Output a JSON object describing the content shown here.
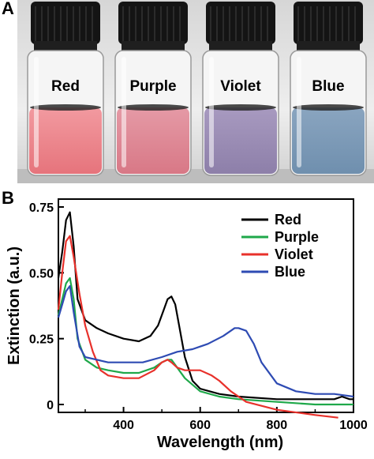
{
  "panels": {
    "a": "A",
    "b": "B"
  },
  "photo": {
    "vials": [
      {
        "label": "Red",
        "liquid": "#e6747c",
        "liquid_top": "#f29aa0"
      },
      {
        "label": "Purple",
        "liquid": "#d87886",
        "liquid_top": "#e59aa6"
      },
      {
        "label": "Violet",
        "liquid": "#8d7fa9",
        "liquid_top": "#a89ac0"
      },
      {
        "label": "Blue",
        "liquid": "#6f8fae",
        "liquid_top": "#8aa5c0"
      }
    ]
  },
  "chart_data": {
    "type": "line",
    "xlabel": "Wavelength (nm)",
    "ylabel": "Extinction (a.u.)",
    "xlim": [
      230,
      1000
    ],
    "ylim": [
      -0.03,
      0.78
    ],
    "xticks": [
      400,
      600,
      800,
      1000
    ],
    "yticks": [
      0,
      0.25,
      0.5,
      0.75
    ],
    "ytick_labels": [
      "0",
      "0.25",
      "0.50",
      "0.75"
    ],
    "grid": false,
    "legend_position": "top-right",
    "series": [
      {
        "name": "Red",
        "color": "#000000",
        "x": [
          230,
          240,
          250,
          260,
          270,
          280,
          300,
          330,
          360,
          400,
          440,
          470,
          490,
          505,
          515,
          525,
          535,
          545,
          560,
          580,
          600,
          650,
          700,
          800,
          900,
          950,
          970,
          990,
          1000
        ],
        "y": [
          0.48,
          0.58,
          0.7,
          0.73,
          0.6,
          0.4,
          0.32,
          0.29,
          0.27,
          0.25,
          0.24,
          0.26,
          0.3,
          0.36,
          0.4,
          0.41,
          0.38,
          0.3,
          0.18,
          0.09,
          0.06,
          0.04,
          0.03,
          0.02,
          0.02,
          0.02,
          0.03,
          0.02,
          0.02
        ]
      },
      {
        "name": "Purple",
        "color": "#1fa84a",
        "x": [
          230,
          240,
          250,
          260,
          270,
          280,
          300,
          330,
          360,
          400,
          440,
          480,
          500,
          515,
          525,
          540,
          560,
          600,
          650,
          700,
          800,
          900,
          1000
        ],
        "y": [
          0.34,
          0.4,
          0.46,
          0.48,
          0.4,
          0.25,
          0.17,
          0.14,
          0.13,
          0.12,
          0.12,
          0.14,
          0.16,
          0.17,
          0.17,
          0.14,
          0.1,
          0.05,
          0.03,
          0.02,
          0.01,
          0.0,
          0.0
        ]
      },
      {
        "name": "Violet",
        "color": "#e8312b",
        "x": [
          230,
          240,
          250,
          260,
          270,
          285,
          300,
          320,
          340,
          360,
          400,
          440,
          480,
          500,
          515,
          525,
          540,
          560,
          600,
          630,
          650,
          680,
          720,
          800,
          900,
          960
        ],
        "y": [
          0.36,
          0.5,
          0.62,
          0.64,
          0.56,
          0.42,
          0.3,
          0.2,
          0.13,
          0.11,
          0.1,
          0.1,
          0.13,
          0.16,
          0.17,
          0.16,
          0.14,
          0.13,
          0.13,
          0.11,
          0.09,
          0.05,
          0.01,
          -0.02,
          -0.04,
          -0.05
        ]
      },
      {
        "name": "Blue",
        "color": "#2e4bb3",
        "x": [
          230,
          240,
          250,
          260,
          270,
          285,
          300,
          330,
          360,
          400,
          450,
          500,
          540,
          580,
          620,
          660,
          690,
          700,
          720,
          740,
          760,
          800,
          850,
          900,
          950,
          1000
        ],
        "y": [
          0.33,
          0.38,
          0.43,
          0.45,
          0.35,
          0.22,
          0.18,
          0.17,
          0.16,
          0.16,
          0.16,
          0.18,
          0.2,
          0.21,
          0.23,
          0.26,
          0.29,
          0.29,
          0.28,
          0.23,
          0.16,
          0.08,
          0.05,
          0.04,
          0.04,
          0.03
        ]
      }
    ]
  }
}
